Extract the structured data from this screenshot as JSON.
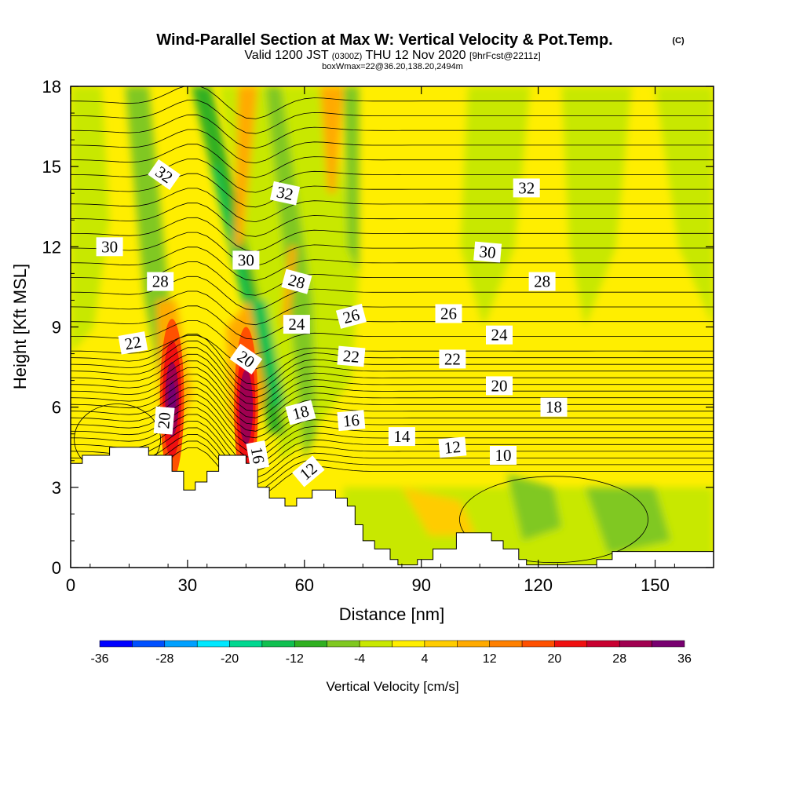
{
  "header": {
    "title": "Wind-Parallel Section at Max W: Vertical Velocity & Pot.Temp.",
    "copyright": "(C)",
    "valid_prefix": "Valid 1200 JST",
    "valid_z": "(0300Z)",
    "valid_date": "THU 12 Nov 2020",
    "forecast": "[9hrFcst@2211z]",
    "box_info": "boxWmax=22@36.20,138.20,2494m"
  },
  "chart_data": {
    "type": "heatmap",
    "xlabel": "Distance [nm]",
    "ylabel": "Height [Kft MSL]",
    "xlim": [
      0,
      165
    ],
    "ylim": [
      0,
      18
    ],
    "x_ticks": [
      0,
      30,
      60,
      90,
      120,
      150
    ],
    "y_ticks": [
      0,
      3,
      6,
      9,
      12,
      15,
      18
    ],
    "colorbar": {
      "title": "Vertical Velocity [cm/s]",
      "levels": [
        -36,
        -32,
        -28,
        -24,
        -20,
        -16,
        -12,
        -8,
        -4,
        0,
        4,
        8,
        12,
        16,
        20,
        24,
        28,
        32,
        36
      ],
      "tick_labels": [
        "-36",
        "-28",
        "-20",
        "-12",
        "-4",
        "4",
        "12",
        "20",
        "28",
        "36"
      ],
      "colors": [
        "#0000ff",
        "#0050ff",
        "#00a0ff",
        "#00e8ff",
        "#00d890",
        "#10c050",
        "#30b020",
        "#80c820",
        "#c8e800",
        "#ffee00",
        "#ffcc00",
        "#ffaa00",
        "#ff8000",
        "#ff5000",
        "#f01010",
        "#c80030",
        "#a00050",
        "#780070"
      ]
    },
    "terrain_profile": [
      [
        0,
        3.9
      ],
      [
        3,
        3.9
      ],
      [
        3,
        4.2
      ],
      [
        10,
        4.2
      ],
      [
        10,
        4.5
      ],
      [
        20,
        4.5
      ],
      [
        20,
        4.2
      ],
      [
        26,
        4.2
      ],
      [
        26,
        3.6
      ],
      [
        29,
        3.6
      ],
      [
        29,
        2.9
      ],
      [
        32,
        2.9
      ],
      [
        32,
        3.2
      ],
      [
        35,
        3.2
      ],
      [
        35,
        3.6
      ],
      [
        38,
        3.6
      ],
      [
        38,
        4.2
      ],
      [
        45,
        4.2
      ],
      [
        45,
        3.9
      ],
      [
        48,
        3.9
      ],
      [
        48,
        3.0
      ],
      [
        51,
        3.0
      ],
      [
        51,
        2.6
      ],
      [
        55,
        2.6
      ],
      [
        55,
        2.3
      ],
      [
        58,
        2.3
      ],
      [
        58,
        2.6
      ],
      [
        62,
        2.6
      ],
      [
        62,
        2.9
      ],
      [
        68,
        2.9
      ],
      [
        68,
        2.6
      ],
      [
        71,
        2.6
      ],
      [
        71,
        2.3
      ],
      [
        73,
        2.3
      ],
      [
        73,
        1.6
      ],
      [
        75,
        1.6
      ],
      [
        75,
        1.0
      ],
      [
        78,
        1.0
      ],
      [
        78,
        0.7
      ],
      [
        82,
        0.7
      ],
      [
        82,
        0.3
      ],
      [
        84,
        0.3
      ],
      [
        84,
        0.1
      ],
      [
        89,
        0.1
      ],
      [
        89,
        0.3
      ],
      [
        93,
        0.3
      ],
      [
        93,
        0.7
      ],
      [
        99,
        0.7
      ],
      [
        99,
        1.3
      ],
      [
        108,
        1.3
      ],
      [
        108,
        1.0
      ],
      [
        111,
        1.0
      ],
      [
        111,
        0.7
      ],
      [
        115,
        0.7
      ],
      [
        115,
        0.3
      ],
      [
        117,
        0.3
      ],
      [
        117,
        0.1
      ],
      [
        135,
        0.1
      ],
      [
        135,
        0.3
      ],
      [
        139,
        0.3
      ],
      [
        139,
        0.6
      ],
      [
        146,
        0.6
      ],
      [
        146,
        0.6
      ],
      [
        165,
        0.6
      ]
    ],
    "updraft_cores": [
      {
        "x": 26,
        "y": 6.3,
        "w_max": 32
      },
      {
        "x": 45,
        "y": 6.0,
        "w_max": 30
      }
    ],
    "isentrope_labels": [
      {
        "text": "32",
        "x": 24,
        "y": 14.7,
        "angle": 35
      },
      {
        "text": "32",
        "x": 55,
        "y": 14.0,
        "angle": 12
      },
      {
        "text": "32",
        "x": 117,
        "y": 14.2,
        "angle": 0
      },
      {
        "text": "30",
        "x": 10,
        "y": 12.0,
        "angle": 0
      },
      {
        "text": "30",
        "x": 45,
        "y": 11.5,
        "angle": 0
      },
      {
        "text": "30",
        "x": 107,
        "y": 11.8,
        "angle": 5
      },
      {
        "text": "28",
        "x": 23,
        "y": 10.7,
        "angle": 0
      },
      {
        "text": "28",
        "x": 58,
        "y": 10.7,
        "angle": 15
      },
      {
        "text": "28",
        "x": 121,
        "y": 10.7,
        "angle": 0
      },
      {
        "text": "26",
        "x": 72,
        "y": 9.4,
        "angle": -15
      },
      {
        "text": "26",
        "x": 97,
        "y": 9.5,
        "angle": 0
      },
      {
        "text": "24",
        "x": 58,
        "y": 9.1,
        "angle": 0
      },
      {
        "text": "24",
        "x": 110,
        "y": 8.7,
        "angle": 0
      },
      {
        "text": "22",
        "x": 16,
        "y": 8.4,
        "angle": -10
      },
      {
        "text": "22",
        "x": 72,
        "y": 7.9,
        "angle": 5
      },
      {
        "text": "22",
        "x": 98,
        "y": 7.8,
        "angle": 0
      },
      {
        "text": "20",
        "x": 45,
        "y": 7.8,
        "angle": 35
      },
      {
        "text": "20",
        "x": 24,
        "y": 5.5,
        "angle": -85
      },
      {
        "text": "20",
        "x": 110,
        "y": 6.8,
        "angle": 0
      },
      {
        "text": "18",
        "x": 59,
        "y": 5.8,
        "angle": -15
      },
      {
        "text": "18",
        "x": 124,
        "y": 6.0,
        "angle": 0
      },
      {
        "text": "16",
        "x": 72,
        "y": 5.5,
        "angle": -5
      },
      {
        "text": "16",
        "x": 48,
        "y": 4.2,
        "angle": 80
      },
      {
        "text": "14",
        "x": 85,
        "y": 4.9,
        "angle": 0
      },
      {
        "text": "12",
        "x": 98,
        "y": 4.5,
        "angle": -5
      },
      {
        "text": "12",
        "x": 61,
        "y": 3.6,
        "angle": -40
      },
      {
        "text": "10",
        "x": 111,
        "y": 4.2,
        "angle": 0
      }
    ]
  }
}
